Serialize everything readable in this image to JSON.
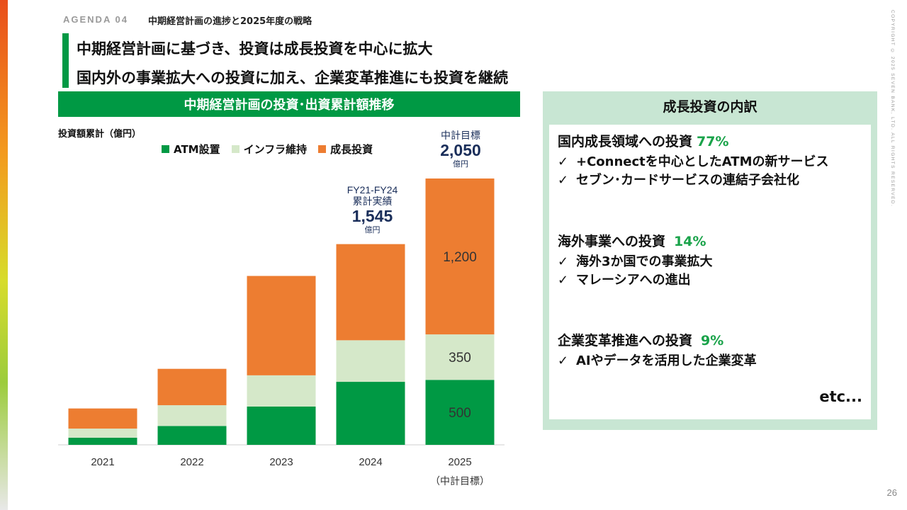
{
  "header": {
    "agenda": "AGENDA 04",
    "agenda_title": "中期経営計画の進捗と2025年度の戦略",
    "headline1": "中期経営計画に基づき、投資は成長投資を中心に拡大",
    "headline2": "国内外の事業拡大への投資に加え、企業変革推進にも投資を継続"
  },
  "chart_banner": "中期経営計画の投資･出資累計額推移",
  "chart_data": {
    "type": "bar",
    "stacked": true,
    "ylabel": "投資額累計（億円）",
    "categories": [
      "2021",
      "2022",
      "2023",
      "2024",
      "2025"
    ],
    "category_sublabels": [
      "",
      "",
      "",
      "",
      "（中計目標）"
    ],
    "series": [
      {
        "name": "ATM設置",
        "color": "#009944",
        "values": [
          55,
          145,
          295,
          485,
          500
        ]
      },
      {
        "name": "インフラ維持",
        "color": "#d5e8c9",
        "values": [
          70,
          160,
          240,
          320,
          350
        ]
      },
      {
        "name": "成長投資",
        "color": "#ed7d31",
        "values": [
          155,
          280,
          765,
          740,
          1200
        ]
      }
    ],
    "ylim": [
      0,
      2200
    ],
    "grid": false,
    "legend": "top",
    "data_labels": [
      {
        "category": "2025",
        "series": "ATM設置",
        "text": "500"
      },
      {
        "category": "2025",
        "series": "インフラ維持",
        "text": "350"
      },
      {
        "category": "2025",
        "series": "成長投資",
        "text": "1,200"
      }
    ]
  },
  "annotations": {
    "fy2124": {
      "line1": "FY21-FY24",
      "line2": "累計実績",
      "value": "1,545",
      "unit": "億円"
    },
    "target": {
      "line1": "中計目標",
      "value": "2,050",
      "unit": "億円"
    }
  },
  "right_panel": {
    "title": "成長投資の内訳",
    "sections": [
      {
        "heading": "国内成長領域への投資",
        "pct": "77%",
        "items": [
          "+Connectを中心としたATMの新サービス",
          "セブン･カードサービスの連結子会社化"
        ]
      },
      {
        "heading": "海外事業への投資",
        "pct": "14%",
        "items": [
          "海外3か国での事業拡大",
          "マレーシアへの進出"
        ]
      },
      {
        "heading": "企業変革推進への投資",
        "pct": "9%",
        "items": [
          "AIやデータを活用した企業変革"
        ]
      }
    ],
    "check_mark": "✓",
    "etc": "etc..."
  },
  "copyright": "COPYRIGHT © 2025 SEVEN BANK, LTD. ALL RIGHTS RESERVED.",
  "page_number": "26"
}
